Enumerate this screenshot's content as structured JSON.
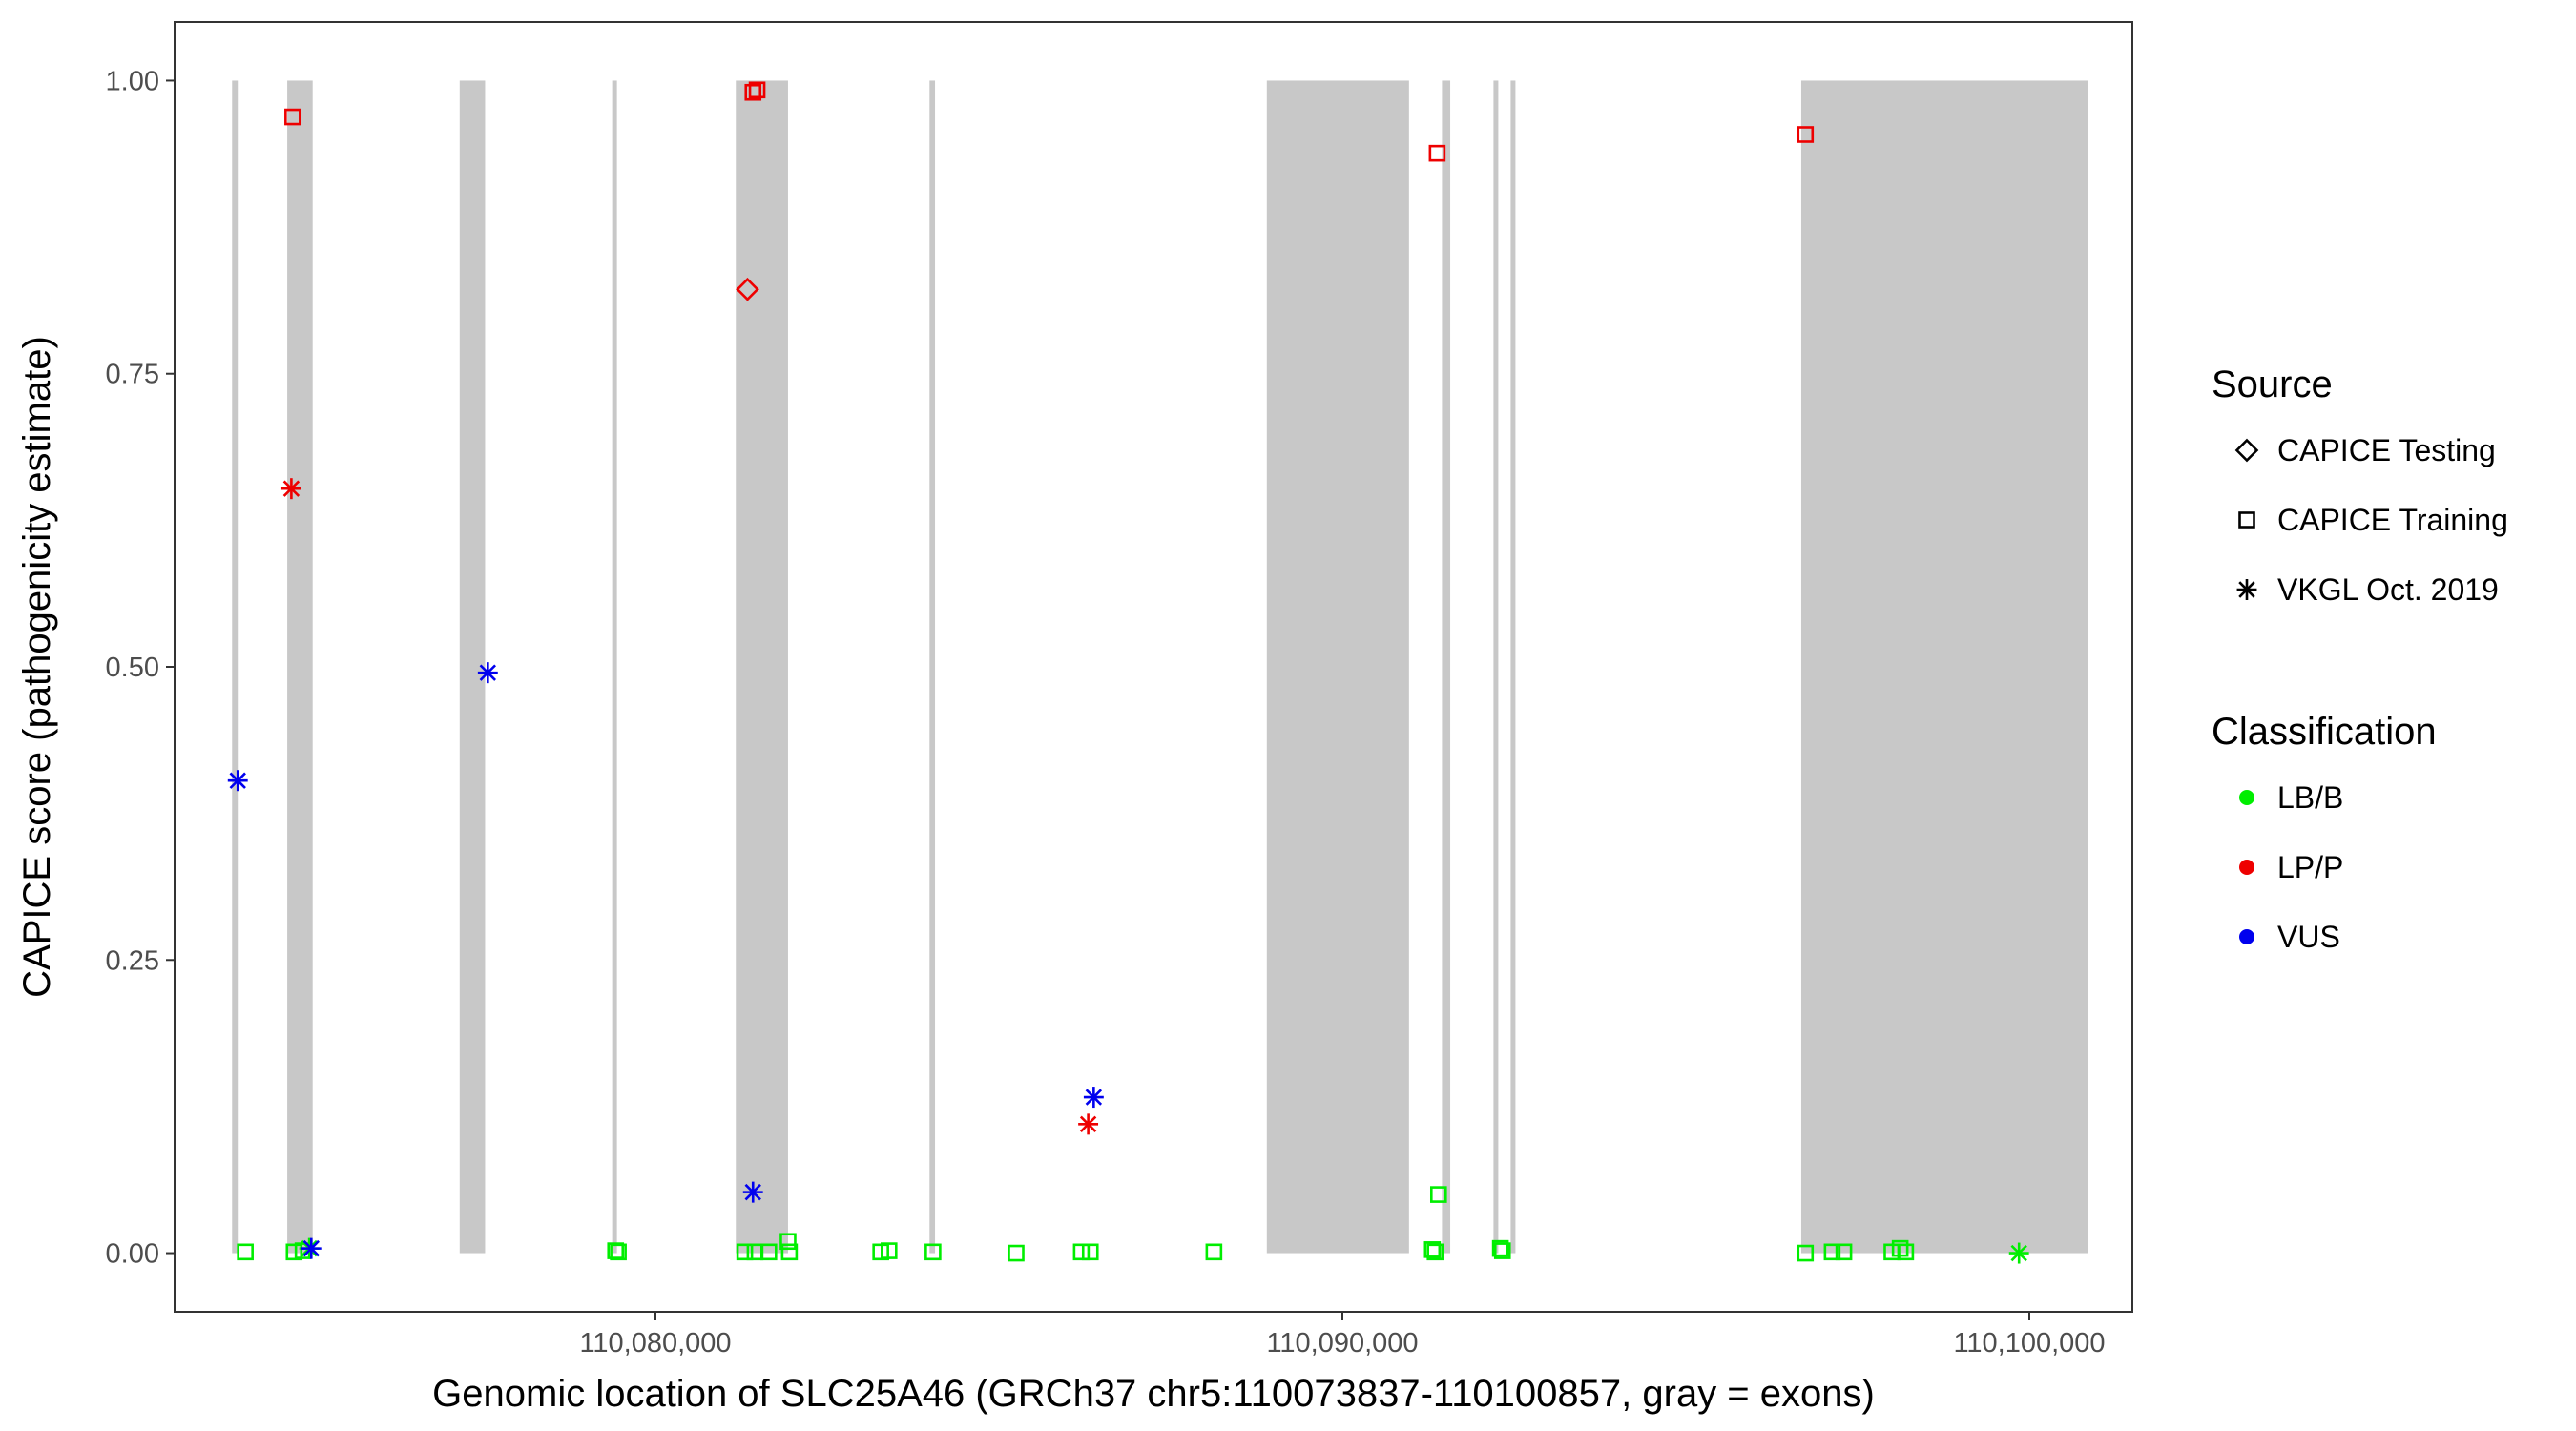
{
  "chart_data": {
    "type": "scatter",
    "title": "",
    "xlabel": "Genomic location of SLC25A46 (GRCh37 chr5:110073837-110100857, gray = exons)",
    "ylabel": "CAPICE score (pathogenicity estimate)",
    "xlim": [
      110073000,
      110101500
    ],
    "ylim": [
      -0.05,
      1.05
    ],
    "x_ticks": [
      110080000,
      110090000,
      110100000
    ],
    "x_tick_labels": [
      "110,080,000",
      "110,090,000",
      "110,100,000"
    ],
    "y_ticks": [
      0,
      0.25,
      0.5,
      0.75,
      1.0
    ],
    "y_tick_labels": [
      "0.00",
      "0.25",
      "0.50",
      "0.75",
      "1.00"
    ],
    "grid": false,
    "exon_band_color": "#c8c8c8",
    "exons": [
      [
        110073837,
        110073920
      ],
      [
        110074640,
        110075010
      ],
      [
        110077150,
        110077520
      ],
      [
        110079370,
        110079420
      ],
      [
        110081170,
        110081930
      ],
      [
        110083990,
        110084070
      ],
      [
        110088900,
        110090970
      ],
      [
        110091450,
        110091570
      ],
      [
        110092200,
        110092260
      ],
      [
        110092450,
        110092510
      ],
      [
        110096680,
        110100857
      ]
    ],
    "colors": {
      "LB/B": "#00ee00",
      "LP/P": "#ee0000",
      "VUS": "#0000ee"
    },
    "legend": {
      "placement": "right",
      "source_title": "Source",
      "sources": [
        {
          "label": "CAPICE Testing",
          "shape": "diamond"
        },
        {
          "label": "CAPICE Training",
          "shape": "square"
        },
        {
          "label": "VKGL Oct. 2019",
          "shape": "asterisk"
        }
      ],
      "classification_title": "Classification",
      "classes": [
        "LB/B",
        "LP/P",
        "VUS"
      ]
    },
    "points": [
      {
        "x": 110073920,
        "y": 0.403,
        "source": "VKGL Oct. 2019",
        "class": "VUS"
      },
      {
        "x": 110074030,
        "y": 0.001,
        "source": "CAPICE Training",
        "class": "LB/B"
      },
      {
        "x": 110074720,
        "y": 0.969,
        "source": "CAPICE Training",
        "class": "LP/P"
      },
      {
        "x": 110074700,
        "y": 0.652,
        "source": "VKGL Oct. 2019",
        "class": "LP/P"
      },
      {
        "x": 110074740,
        "y": 0.001,
        "source": "CAPICE Training",
        "class": "LB/B"
      },
      {
        "x": 110074870,
        "y": 0.002,
        "source": "CAPICE Training",
        "class": "LB/B"
      },
      {
        "x": 110074960,
        "y": 0.004,
        "source": "VKGL Oct. 2019",
        "class": "LB/B"
      },
      {
        "x": 110074990,
        "y": 0.004,
        "source": "VKGL Oct. 2019",
        "class": "VUS"
      },
      {
        "x": 110077560,
        "y": 0.495,
        "source": "VKGL Oct. 2019",
        "class": "VUS"
      },
      {
        "x": 110079420,
        "y": 0.002,
        "source": "CAPICE Training",
        "class": "LB/B"
      },
      {
        "x": 110079460,
        "y": 0.001,
        "source": "CAPICE Training",
        "class": "LB/B"
      },
      {
        "x": 110081340,
        "y": 0.822,
        "source": "CAPICE Testing",
        "class": "LP/P"
      },
      {
        "x": 110081420,
        "y": 0.99,
        "source": "CAPICE Training",
        "class": "LP/P"
      },
      {
        "x": 110081480,
        "y": 0.992,
        "source": "CAPICE Training",
        "class": "LP/P"
      },
      {
        "x": 110081420,
        "y": 0.052,
        "source": "VKGL Oct. 2019",
        "class": "VUS"
      },
      {
        "x": 110081300,
        "y": 0.001,
        "source": "CAPICE Training",
        "class": "LB/B"
      },
      {
        "x": 110081450,
        "y": 0.001,
        "source": "CAPICE Training",
        "class": "LB/B"
      },
      {
        "x": 110081650,
        "y": 0.001,
        "source": "CAPICE Training",
        "class": "LB/B"
      },
      {
        "x": 110081930,
        "y": 0.01,
        "source": "CAPICE Training",
        "class": "LB/B"
      },
      {
        "x": 110081950,
        "y": 0.001,
        "source": "CAPICE Training",
        "class": "LB/B"
      },
      {
        "x": 110083280,
        "y": 0.001,
        "source": "CAPICE Training",
        "class": "LB/B"
      },
      {
        "x": 110083400,
        "y": 0.002,
        "source": "CAPICE Training",
        "class": "LB/B"
      },
      {
        "x": 110084040,
        "y": 0.001,
        "source": "CAPICE Training",
        "class": "LB/B"
      },
      {
        "x": 110085250,
        "y": 0.0,
        "source": "CAPICE Training",
        "class": "LB/B"
      },
      {
        "x": 110086200,
        "y": 0.001,
        "source": "CAPICE Training",
        "class": "LB/B"
      },
      {
        "x": 110086330,
        "y": 0.001,
        "source": "CAPICE Training",
        "class": "LB/B"
      },
      {
        "x": 110086300,
        "y": 0.11,
        "source": "VKGL Oct. 2019",
        "class": "LP/P"
      },
      {
        "x": 110086380,
        "y": 0.133,
        "source": "VKGL Oct. 2019",
        "class": "VUS"
      },
      {
        "x": 110088130,
        "y": 0.001,
        "source": "CAPICE Training",
        "class": "LB/B"
      },
      {
        "x": 110091380,
        "y": 0.938,
        "source": "CAPICE Training",
        "class": "LP/P"
      },
      {
        "x": 110091400,
        "y": 0.05,
        "source": "CAPICE Training",
        "class": "LB/B"
      },
      {
        "x": 110091310,
        "y": 0.003,
        "source": "CAPICE Training",
        "class": "LB/B"
      },
      {
        "x": 110091350,
        "y": 0.001,
        "source": "CAPICE Training",
        "class": "LB/B"
      },
      {
        "x": 110092300,
        "y": 0.004,
        "source": "CAPICE Training",
        "class": "LB/B"
      },
      {
        "x": 110092330,
        "y": 0.002,
        "source": "CAPICE Training",
        "class": "LB/B"
      },
      {
        "x": 110096740,
        "y": 0.954,
        "source": "CAPICE Training",
        "class": "LP/P"
      },
      {
        "x": 110096740,
        "y": 0.0,
        "source": "CAPICE Training",
        "class": "LB/B"
      },
      {
        "x": 110097130,
        "y": 0.001,
        "source": "CAPICE Training",
        "class": "LB/B"
      },
      {
        "x": 110097300,
        "y": 0.001,
        "source": "CAPICE Training",
        "class": "LB/B"
      },
      {
        "x": 110098000,
        "y": 0.001,
        "source": "CAPICE Training",
        "class": "LB/B"
      },
      {
        "x": 110098120,
        "y": 0.004,
        "source": "CAPICE Training",
        "class": "LB/B"
      },
      {
        "x": 110098200,
        "y": 0.001,
        "source": "CAPICE Training",
        "class": "LB/B"
      },
      {
        "x": 110099850,
        "y": 0.0,
        "source": "VKGL Oct. 2019",
        "class": "LB/B"
      }
    ]
  }
}
